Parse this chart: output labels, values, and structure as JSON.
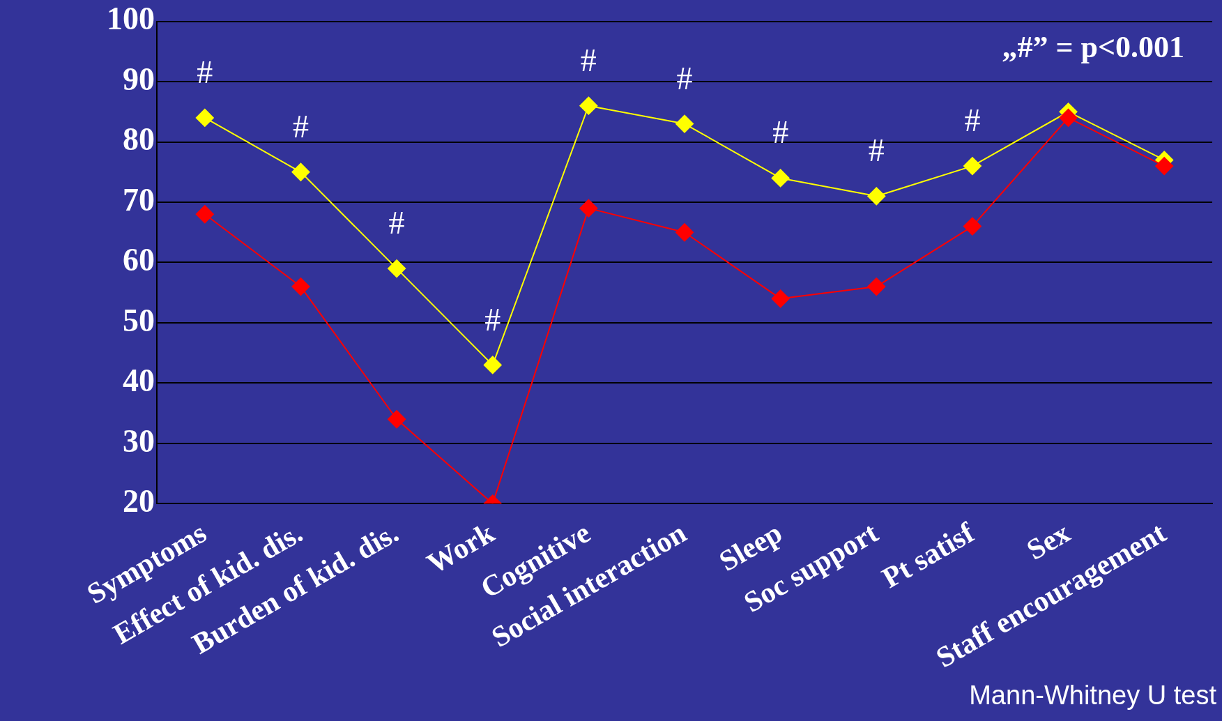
{
  "chart_data": {
    "type": "line",
    "categories": [
      "Symptoms",
      "Effect of kid. dis.",
      "Burden of kid. dis.",
      "Work",
      "Cognitive",
      "Social interaction",
      "Sleep",
      "Soc support",
      "Pt satisf",
      "Sex",
      "Staff encouragement"
    ],
    "series": [
      {
        "color": "#ff0000",
        "values": [
          68,
          56,
          34,
          20,
          69,
          65,
          54,
          56,
          66,
          84,
          76
        ]
      },
      {
        "color": "#ffff00",
        "values": [
          84,
          75,
          59,
          43,
          86,
          83,
          74,
          71,
          76,
          85,
          77
        ]
      }
    ],
    "ylim": [
      20,
      100
    ],
    "yticks": [
      20,
      30,
      40,
      50,
      60,
      70,
      80,
      90,
      100
    ],
    "grid": "y",
    "legend": false,
    "marker": "diamond",
    "line_style": "solid",
    "annotations": [
      "#",
      "#",
      "#",
      "#",
      "#",
      "#",
      "#",
      "#",
      "#",
      "„#” = p<0.001",
      "Mann-Whitney U test"
    ]
  }
}
